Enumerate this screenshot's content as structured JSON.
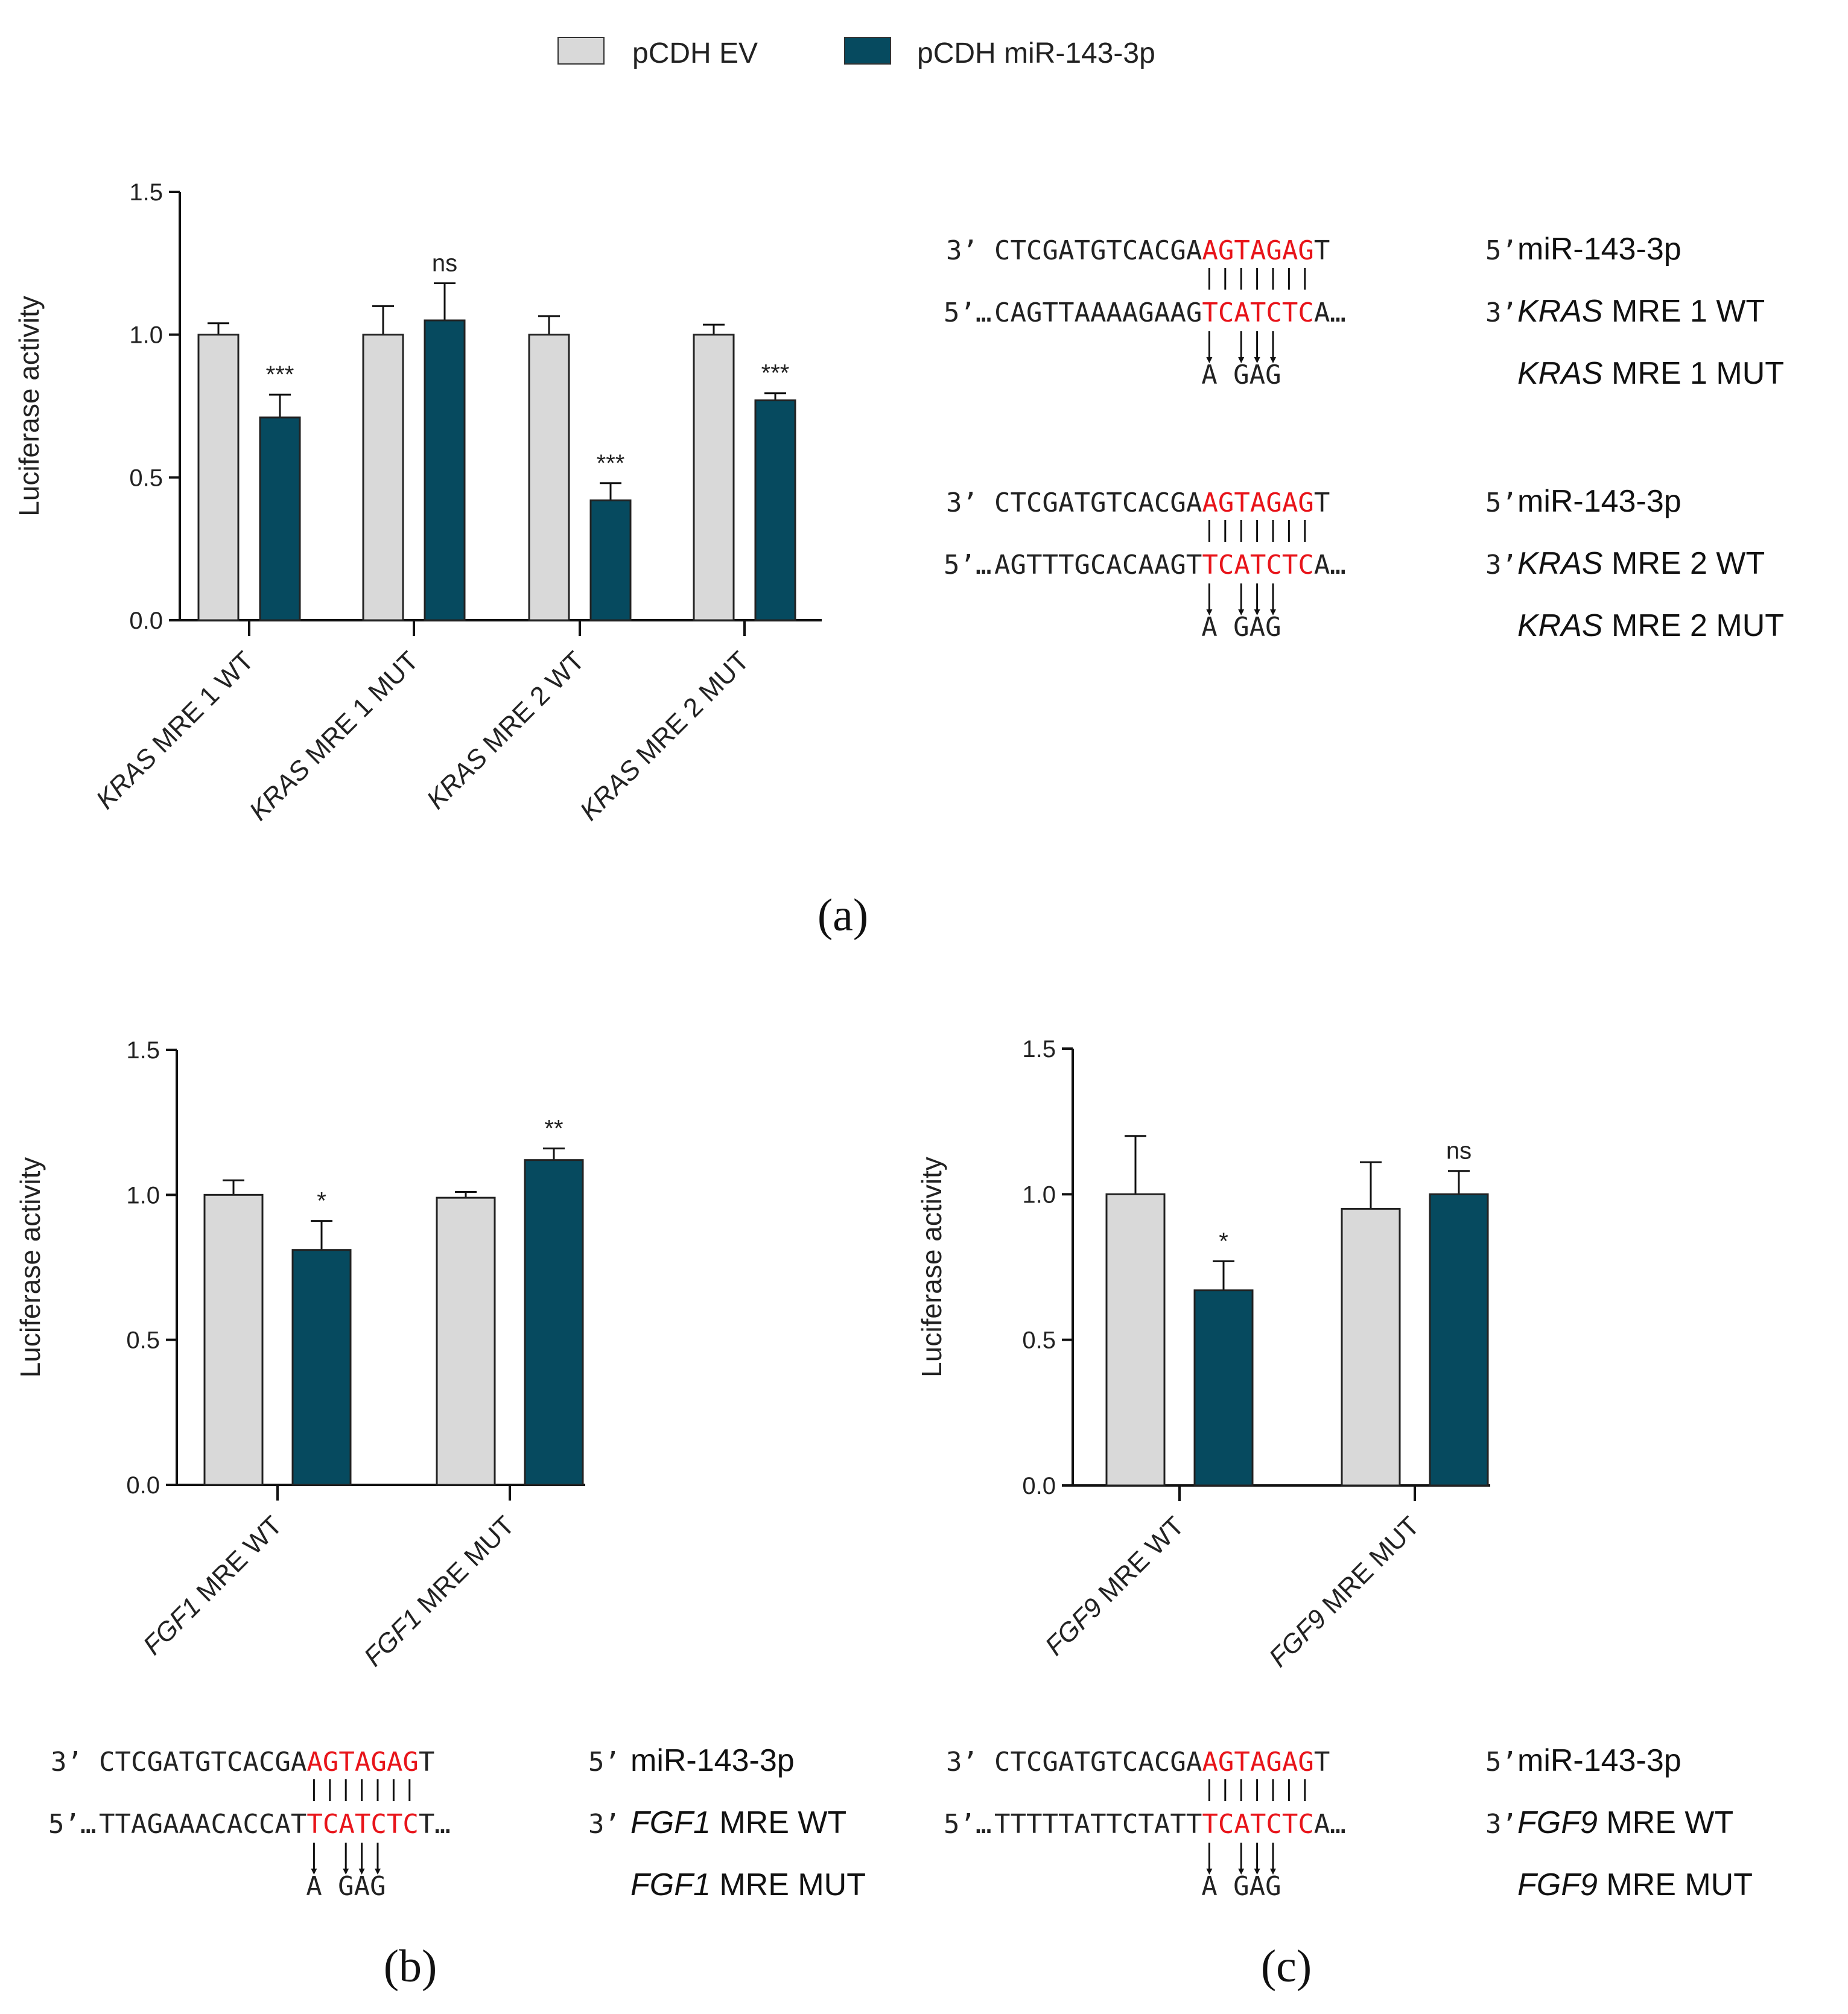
{
  "legend": {
    "items": [
      {
        "label": "pCDH EV",
        "color": "#d9d9d9"
      },
      {
        "label": "pCDH miR-143-3p",
        "color": "#064a5f"
      }
    ]
  },
  "panel_labels": {
    "a": "(a)",
    "b": "(b)",
    "c": "(c)"
  },
  "colors": {
    "ev": "#d9d9d9",
    "mir": "#064a5f",
    "highlight": "#e8141a"
  },
  "chart_data": [
    {
      "id": "a",
      "type": "bar",
      "ylabel": "Luciferase activity",
      "ylim": [
        0,
        1.5
      ],
      "yticks": [
        "0.0",
        "0.5",
        "1.0",
        "1.5"
      ],
      "categories": [
        {
          "gene": "KRAS",
          "rest": " MRE 1 WT"
        },
        {
          "gene": "KRAS",
          "rest": " MRE 1 MUT"
        },
        {
          "gene": "KRAS",
          "rest": " MRE 2 WT"
        },
        {
          "gene": "KRAS",
          "rest": " MRE 2 MUT"
        }
      ],
      "series": [
        {
          "name": "pCDH EV",
          "values": [
            1.0,
            1.0,
            1.0,
            1.0
          ],
          "errors": [
            0.04,
            0.1,
            0.065,
            0.035
          ]
        },
        {
          "name": "pCDH miR-143-3p",
          "values": [
            0.71,
            1.05,
            0.42,
            0.77
          ],
          "errors": [
            0.08,
            0.13,
            0.06,
            0.025
          ]
        }
      ],
      "significance": [
        "***",
        "ns",
        "***",
        "***"
      ]
    },
    {
      "id": "b",
      "type": "bar",
      "ylabel": "Luciferase activity",
      "ylim": [
        0,
        1.5
      ],
      "yticks": [
        "0.0",
        "0.5",
        "1.0",
        "1.5"
      ],
      "categories": [
        {
          "gene": "FGF1",
          "rest": " MRE WT"
        },
        {
          "gene": "FGF1",
          "rest": " MRE MUT"
        }
      ],
      "series": [
        {
          "name": "pCDH EV",
          "values": [
            1.0,
            0.99
          ],
          "errors": [
            0.05,
            0.02
          ]
        },
        {
          "name": "pCDH miR-143-3p",
          "values": [
            0.81,
            1.12
          ],
          "errors": [
            0.1,
            0.04
          ]
        }
      ],
      "significance": [
        "*",
        "**"
      ]
    },
    {
      "id": "c",
      "type": "bar",
      "ylabel": "Luciferase activity",
      "ylim": [
        0,
        1.5
      ],
      "yticks": [
        "0.0",
        "0.5",
        "1.0",
        "1.5"
      ],
      "categories": [
        {
          "gene": "FGF9",
          "rest": "  MRE WT"
        },
        {
          "gene": "FGF9",
          "rest": " MRE MUT"
        }
      ],
      "series": [
        {
          "name": "pCDH EV",
          "values": [
            1.0,
            0.95
          ],
          "errors": [
            0.2,
            0.16
          ]
        },
        {
          "name": "pCDH miR-143-3p",
          "values": [
            0.67,
            1.0
          ],
          "errors": [
            0.1,
            0.08
          ]
        }
      ],
      "significance": [
        "*",
        "ns"
      ]
    }
  ],
  "alignments": [
    {
      "id": "kras-mre1",
      "mir_prefix": "3’",
      "mir_plain": "CTCGATGTCACGA",
      "mir_red": "AGTAGAG",
      "mir_tail": "T",
      "mir_end": "5’",
      "mir_name": "miR-143-3p",
      "target_prefix": "5’…",
      "target_plain": "CAGTTAAAAGAAG",
      "target_red": "TCATCTC",
      "target_tail": "A…",
      "target_end": "3’",
      "wt_gene": "KRAS",
      "wt_rest": " MRE 1 WT",
      "mut_bases": "A GAG",
      "mut_gene": "KRAS",
      "mut_rest": " MRE 1 MUT"
    },
    {
      "id": "kras-mre2",
      "mir_prefix": "3’",
      "mir_plain": "CTCGATGTCACGA",
      "mir_red": "AGTAGAG",
      "mir_tail": "T",
      "mir_end": "5’",
      "mir_name": "miR-143-3p",
      "target_prefix": "5’…",
      "target_plain": "AGTTTGCACAAGT",
      "target_red": "TCATCTC",
      "target_tail": "A…",
      "target_end": "3’",
      "wt_gene": "KRAS",
      "wt_rest": " MRE 2 WT",
      "mut_bases": "A GAG",
      "mut_gene": "KRAS",
      "mut_rest": " MRE 2 MUT"
    },
    {
      "id": "fgf1",
      "mir_prefix": "3’",
      "mir_plain": "CTCGATGTCACGA",
      "mir_red": "AGTAGAG",
      "mir_tail": "T",
      "mir_end": "5’",
      "mir_name": "miR-143-3p",
      "target_prefix": "5’…",
      "target_plain": "TTAGAAACACCAT",
      "target_red": "TCATCTC",
      "target_tail": "T…",
      "target_end": "3’",
      "wt_gene": "FGF1",
      "wt_rest": " MRE WT",
      "mut_bases": "A GAG",
      "mut_gene": "FGF1",
      "mut_rest": " MRE MUT"
    },
    {
      "id": "fgf9",
      "mir_prefix": "3’",
      "mir_plain": "CTCGATGTCACGA",
      "mir_red": "AGTAGAG",
      "mir_tail": "T",
      "mir_end": "5’",
      "mir_name": "miR-143-3p",
      "target_prefix": "5’…",
      "target_plain": "TTTTTATTCTATT",
      "target_red": "TCATCTC",
      "target_tail": "A…",
      "target_end": "3’",
      "wt_gene": "FGF9",
      "wt_rest": " MRE WT",
      "mut_bases": "A GAG",
      "mut_gene": "FGF9",
      "mut_rest": " MRE MUT"
    }
  ]
}
